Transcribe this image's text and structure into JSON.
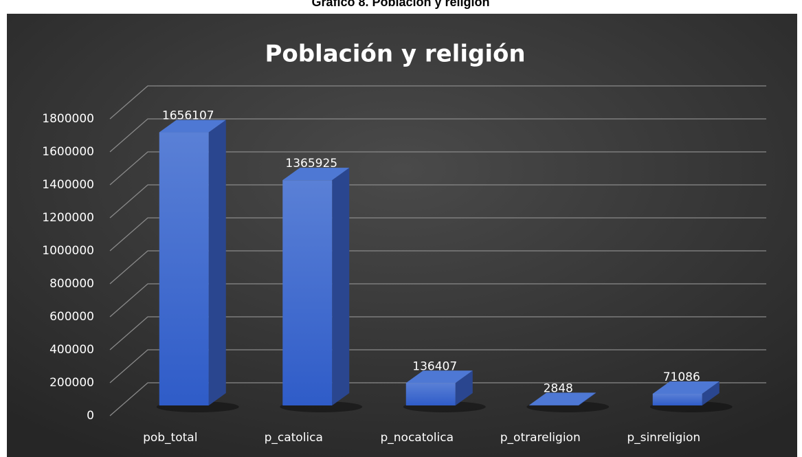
{
  "caption": "Gráfico 8. Población y religión",
  "chart_data": {
    "type": "bar3d",
    "title": "Población y religión",
    "categories": [
      "pob_total",
      "p_catolica",
      "p_nocatolica",
      "p_otrareligion",
      "p_sinreligion"
    ],
    "values": [
      1656107,
      1365925,
      136407,
      2848,
      71086
    ],
    "color": "#4470d0",
    "ylim": [
      0,
      1800000
    ],
    "yticks": [
      0,
      200000,
      400000,
      600000,
      800000,
      1000000,
      1200000,
      1400000,
      1600000,
      1800000
    ],
    "grid": true
  }
}
